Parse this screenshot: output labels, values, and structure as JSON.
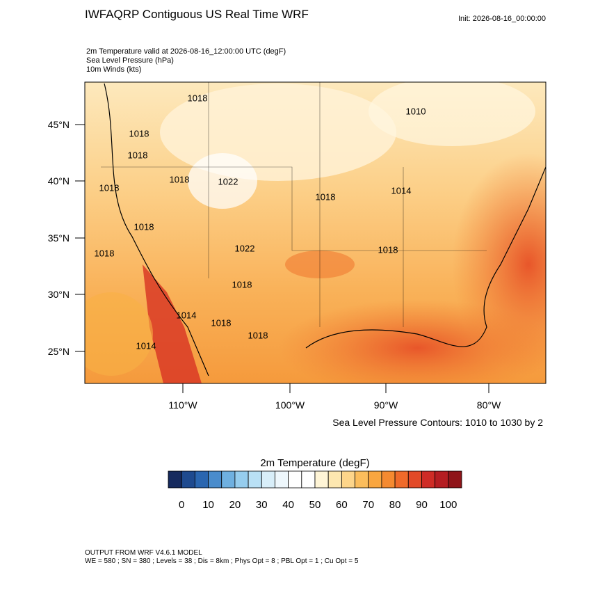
{
  "header": {
    "title": "IWFAQRP Contiguous US Real Time WRF",
    "init": "Init: 2026-08-16_00:00:00",
    "fields": [
      "2m Temperature valid at 2026-08-16_12:00:00 UTC   (degF)",
      "Sea Level Pressure   (hPa)",
      "10m Winds   (kts)"
    ]
  },
  "map": {
    "lat_labels": [
      "45°N",
      "40°N",
      "35°N",
      "30°N",
      "25°N"
    ],
    "lon_labels": [
      "110°W",
      "100°W",
      "90°W",
      "80°W"
    ],
    "contour_labels": [
      "1018",
      "1010",
      "1018",
      "1018",
      "1018",
      "1022",
      "1018",
      "1014",
      "1018",
      "1018",
      "1018",
      "1022",
      "1018",
      "1018",
      "1014",
      "1018",
      "1018",
      "1014"
    ],
    "caption": "Sea Level Pressure Contours: 1010 to 1030 by 2"
  },
  "colorbar": {
    "title": "2m Temperature  (degF)",
    "range": [
      -5,
      105
    ],
    "ticks": [
      0,
      10,
      20,
      30,
      40,
      50,
      60,
      70,
      80,
      90,
      100
    ],
    "colors": [
      "#162a5e",
      "#1e4a8f",
      "#2a66b0",
      "#4a8ccc",
      "#6fb0e0",
      "#96cdee",
      "#b9e0f5",
      "#d8eef9",
      "#eef7fc",
      "#ffffff",
      "#ffffff",
      "#fff5d6",
      "#fde7b0",
      "#fdd58a",
      "#fbbd5c",
      "#f9a640",
      "#f58a30",
      "#ef6a2a",
      "#e24a28",
      "#cf2c26",
      "#b51d22",
      "#8f1419"
    ]
  },
  "footer": [
    "OUTPUT FROM WRF V4.6.1 MODEL",
    "WE = 580 ; SN = 380 ; Levels = 38 ; Dis = 8km ; Phys Opt = 8 ; PBL Opt = 1 ; Cu Opt = 5"
  ]
}
